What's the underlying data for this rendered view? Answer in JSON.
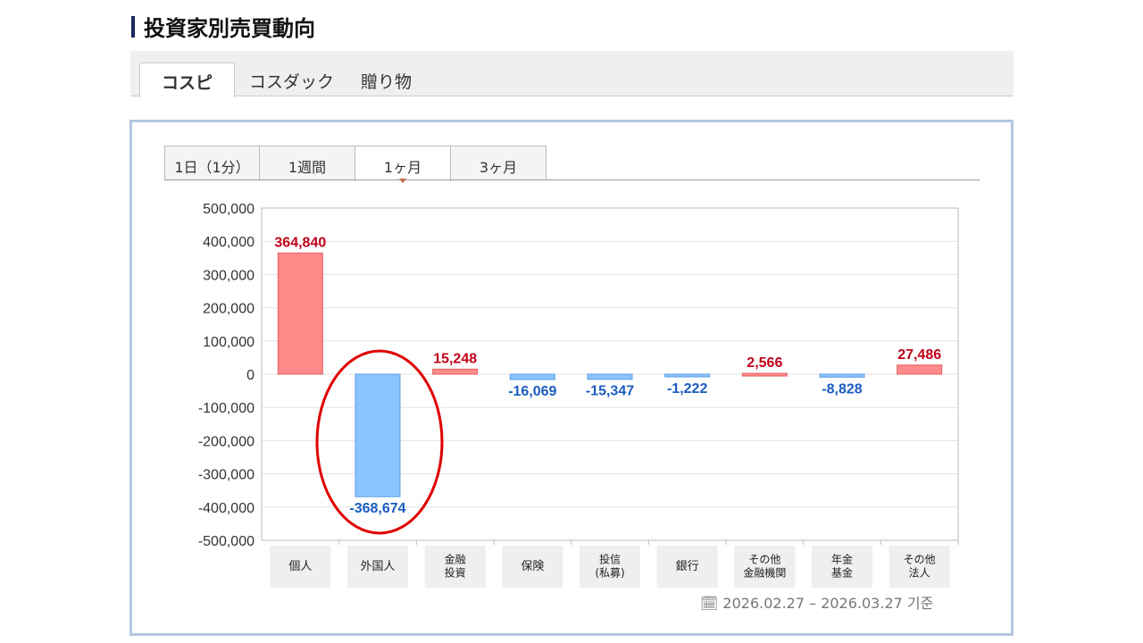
{
  "page_title": "投資家別売買動向",
  "market_tabs": [
    {
      "label": "コスピ",
      "active": true
    },
    {
      "label": "コスダック"
    },
    {
      "label": "贈り物"
    }
  ],
  "period_tabs": [
    {
      "label": "1日（1分）"
    },
    {
      "label": "1週間"
    },
    {
      "label": "1ヶ月",
      "active": true
    },
    {
      "label": "3ヶ月"
    }
  ],
  "date_range": "2026.02.27 – 2026.03.27 기준",
  "colors": {
    "positive": "#ff8a8a",
    "negative": "#8ac4ff",
    "positive_label": "#c0001a",
    "negative_label": "#1a5cc0",
    "annotation": "#e00000"
  },
  "chart_data": {
    "type": "bar",
    "categories": [
      [
        "個人"
      ],
      [
        "外国人"
      ],
      [
        "金融",
        "投資"
      ],
      [
        "保険"
      ],
      [
        "投信",
        "(私募)"
      ],
      [
        "銀行"
      ],
      [
        "その他",
        "金融機関"
      ],
      [
        "年金",
        "基金"
      ],
      [
        "その他",
        "法人"
      ]
    ],
    "values": [
      364840,
      -368674,
      15248,
      -16069,
      -15347,
      -1222,
      2566,
      -8828,
      27486
    ],
    "data_labels": [
      "364,840",
      "-368,674",
      "15,248",
      "-16,069",
      "-15,347",
      "-1,222",
      "2,566",
      "-8,828",
      "27,486"
    ],
    "ylim": [
      -500000,
      500000
    ],
    "yticks": [
      "500,000",
      "400,000",
      "300,000",
      "200,000",
      "100,000",
      "0",
      "-100,000",
      "-200,000",
      "-300,000",
      "-400,000",
      "-500,000"
    ],
    "grid": true,
    "annotation": "red ellipse circling 外国人 bar"
  }
}
